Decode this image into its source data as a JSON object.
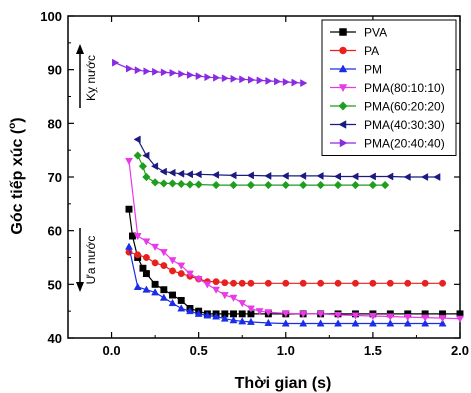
{
  "chart_data": {
    "type": "scatter",
    "xlabel": "Thời gian (s)",
    "ylabel": "Góc tiếp xúc (°)",
    "ylabel_main": "Góc tiếp xúc (",
    "ylabel_degree": "o",
    "ylabel_close": ")",
    "xlim": [
      -0.25,
      2.0
    ],
    "ylim": [
      40,
      100
    ],
    "x_ticks": [
      0.0,
      0.5,
      1.0,
      1.5,
      2.0
    ],
    "x_tick_labels": [
      "0.0",
      "0.5",
      "1.0",
      "1.5",
      "2.0"
    ],
    "y_ticks": [
      40,
      50,
      60,
      70,
      80,
      90,
      100
    ],
    "y_tick_labels": [
      "40",
      "50",
      "60",
      "70",
      "80",
      "90",
      "100"
    ],
    "legend_position": "top-right",
    "grid": false,
    "annotations": [
      {
        "text": "Kỵ nước",
        "direction": "up"
      },
      {
        "text": "Ưa nước",
        "direction": "down"
      }
    ],
    "series": [
      {
        "name": "PVA",
        "color": "#000000",
        "marker": "square",
        "x": [
          0.1,
          0.12,
          0.15,
          0.18,
          0.2,
          0.25,
          0.3,
          0.35,
          0.4,
          0.45,
          0.5,
          0.55,
          0.6,
          0.65,
          0.7,
          0.75,
          0.8,
          0.9,
          1.0,
          1.1,
          1.2,
          1.3,
          1.4,
          1.5,
          1.6,
          1.7,
          1.8,
          1.9,
          2.0
        ],
        "y": [
          64,
          59,
          55,
          53,
          52,
          50,
          49,
          48,
          47,
          45.5,
          45,
          44.5,
          44.5,
          44.5,
          44.5,
          44.5,
          44.5,
          44.5,
          44.5,
          44.5,
          44.5,
          44.5,
          44.5,
          44.5,
          44.5,
          44.5,
          44.5,
          44.5,
          44.5
        ]
      },
      {
        "name": "PA",
        "color": "#e8201e",
        "marker": "circle",
        "x": [
          0.1,
          0.15,
          0.2,
          0.25,
          0.3,
          0.35,
          0.4,
          0.45,
          0.5,
          0.55,
          0.6,
          0.65,
          0.7,
          0.75,
          0.8,
          0.9,
          1.0,
          1.1,
          1.2,
          1.3,
          1.4,
          1.5,
          1.6,
          1.7,
          1.8,
          1.9
        ],
        "y": [
          56,
          55.5,
          55,
          54,
          53.5,
          52.5,
          52,
          51.5,
          51,
          50.5,
          50.5,
          50.3,
          50.2,
          50.2,
          50.2,
          50.2,
          50.2,
          50.2,
          50.2,
          50.2,
          50.2,
          50.2,
          50.2,
          50.2,
          50.2,
          50.2
        ]
      },
      {
        "name": "PM",
        "color": "#1a2de8",
        "marker": "triangle-up",
        "x": [
          0.1,
          0.15,
          0.2,
          0.25,
          0.3,
          0.35,
          0.4,
          0.45,
          0.5,
          0.55,
          0.6,
          0.65,
          0.7,
          0.75,
          0.8,
          0.9,
          1.0,
          1.1,
          1.2,
          1.3,
          1.4,
          1.5,
          1.6,
          1.7,
          1.8,
          1.9
        ],
        "y": [
          57,
          49.5,
          49,
          48.5,
          47.5,
          46.5,
          45.5,
          45,
          44.5,
          44.2,
          44,
          43.6,
          43.3,
          43.1,
          43,
          42.8,
          42.7,
          42.7,
          42.7,
          42.7,
          42.7,
          42.7,
          42.7,
          42.7,
          42.7,
          42.7
        ]
      },
      {
        "name": "PMA(80:10:10)",
        "color": "#e83ae8",
        "marker": "triangle-down",
        "x": [
          0.1,
          0.15,
          0.2,
          0.25,
          0.3,
          0.35,
          0.4,
          0.45,
          0.5,
          0.55,
          0.6,
          0.65,
          0.7,
          0.75,
          0.8,
          0.85,
          0.9,
          1.0,
          1.1,
          1.2,
          1.3,
          1.4,
          1.5,
          1.6,
          1.7,
          1.8,
          1.9,
          2.0
        ],
        "y": [
          73,
          59,
          58,
          57,
          56,
          54.5,
          53.5,
          52,
          51,
          50,
          49,
          48,
          47.5,
          46.5,
          45.5,
          45,
          44.8,
          44.6,
          44.5,
          44.5,
          44.3,
          44.2,
          44.1,
          44,
          43.9,
          43.8,
          43.7,
          43.6
        ]
      },
      {
        "name": "PMA(60:20:20)",
        "color": "#1f9e1f",
        "marker": "diamond",
        "x": [
          0.15,
          0.18,
          0.2,
          0.25,
          0.3,
          0.35,
          0.4,
          0.45,
          0.5,
          0.6,
          0.7,
          0.8,
          0.9,
          1.0,
          1.1,
          1.2,
          1.3,
          1.4,
          1.5,
          1.57
        ],
        "y": [
          74,
          72,
          70,
          69,
          68.8,
          68.8,
          68.7,
          68.6,
          68.6,
          68.5,
          68.5,
          68.5,
          68.5,
          68.5,
          68.5,
          68.5,
          68.5,
          68.5,
          68.5,
          68.5
        ]
      },
      {
        "name": "PMA(40:30:30)",
        "color": "#1a1a80",
        "marker": "triangle-left",
        "x": [
          0.15,
          0.2,
          0.25,
          0.3,
          0.35,
          0.4,
          0.45,
          0.5,
          0.6,
          0.7,
          0.8,
          0.9,
          1.0,
          1.1,
          1.2,
          1.3,
          1.4,
          1.5,
          1.6,
          1.7,
          1.8,
          1.87
        ],
        "y": [
          77,
          74,
          72,
          71,
          70.8,
          70.6,
          70.5,
          70.5,
          70.4,
          70.3,
          70.3,
          70.2,
          70.2,
          70.2,
          70.2,
          70.1,
          70.1,
          70.1,
          70.1,
          70,
          70,
          70
        ]
      },
      {
        "name": "PMA(20:40:40)",
        "color": "#8a2be2",
        "marker": "triangle-right",
        "x": [
          0.02,
          0.1,
          0.15,
          0.2,
          0.25,
          0.3,
          0.35,
          0.4,
          0.45,
          0.5,
          0.55,
          0.6,
          0.65,
          0.7,
          0.75,
          0.8,
          0.85,
          0.9,
          0.95,
          1.0,
          1.05,
          1.1
        ],
        "y": [
          91.3,
          90.2,
          89.9,
          89.7,
          89.6,
          89.5,
          89.4,
          89.2,
          89.0,
          88.8,
          88.6,
          88.5,
          88.4,
          88.3,
          88.2,
          88.1,
          88.0,
          87.9,
          87.8,
          87.7,
          87.6,
          87.5
        ]
      }
    ]
  }
}
